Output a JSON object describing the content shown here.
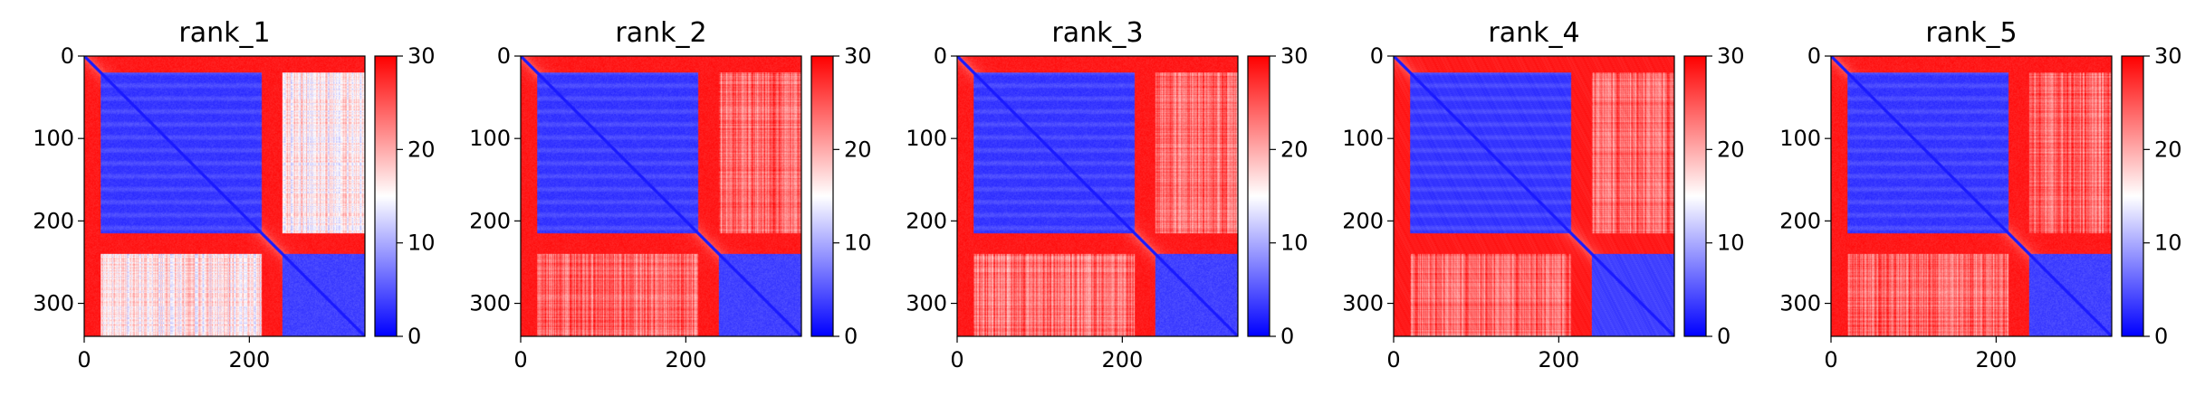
{
  "chart_data": [
    {
      "type": "heatmap",
      "title": "rank_1",
      "xticks": [
        "0",
        "200"
      ],
      "yticks": [
        "0",
        "100",
        "200",
        "300"
      ],
      "n": 340,
      "colorbar": {
        "ticks": [
          "0",
          "10",
          "20",
          "30"
        ],
        "range": [
          0,
          30
        ],
        "colormap": "bwr"
      },
      "domains": [
        [
          20,
          215
        ],
        [
          240,
          340
        ]
      ],
      "off_diagonal_level": 0.55
    },
    {
      "type": "heatmap",
      "title": "rank_2",
      "xticks": [
        "0",
        "200"
      ],
      "yticks": [
        "0",
        "100",
        "200",
        "300"
      ],
      "n": 340,
      "colorbar": {
        "ticks": [
          "0",
          "10",
          "20",
          "30"
        ],
        "range": [
          0,
          30
        ],
        "colormap": "bwr"
      },
      "domains": [
        [
          20,
          215
        ],
        [
          240,
          340
        ]
      ],
      "off_diagonal_level": 0.8
    },
    {
      "type": "heatmap",
      "title": "rank_3",
      "xticks": [
        "0",
        "200"
      ],
      "yticks": [
        "0",
        "100",
        "200",
        "300"
      ],
      "n": 340,
      "colorbar": {
        "ticks": [
          "0",
          "10",
          "20",
          "30"
        ],
        "range": [
          0,
          30
        ],
        "colormap": "bwr"
      },
      "domains": [
        [
          20,
          215
        ],
        [
          240,
          340
        ]
      ],
      "off_diagonal_level": 0.78
    },
    {
      "type": "heatmap",
      "title": "rank_4",
      "xticks": [
        "0",
        "200"
      ],
      "yticks": [
        "0",
        "100",
        "200",
        "300"
      ],
      "n": 340,
      "colorbar": {
        "ticks": [
          "0",
          "10",
          "20",
          "30"
        ],
        "range": [
          0,
          30
        ],
        "colormap": "bwr"
      },
      "domains": [
        [
          20,
          215
        ],
        [
          240,
          340
        ]
      ],
      "off_diagonal_level": 0.8
    },
    {
      "type": "heatmap",
      "title": "rank_5",
      "xticks": [
        "0",
        "200"
      ],
      "yticks": [
        "0",
        "100",
        "200",
        "300"
      ],
      "n": 340,
      "colorbar": {
        "ticks": [
          "0",
          "10",
          "20",
          "30"
        ],
        "range": [
          0,
          30
        ],
        "colormap": "bwr"
      },
      "domains": [
        [
          20,
          215
        ],
        [
          240,
          340
        ]
      ],
      "off_diagonal_level": 0.8
    }
  ],
  "colors": {
    "low": "#0000ff",
    "mid": "#ffffff",
    "high": "#ff0000",
    "axis": "#000000"
  }
}
